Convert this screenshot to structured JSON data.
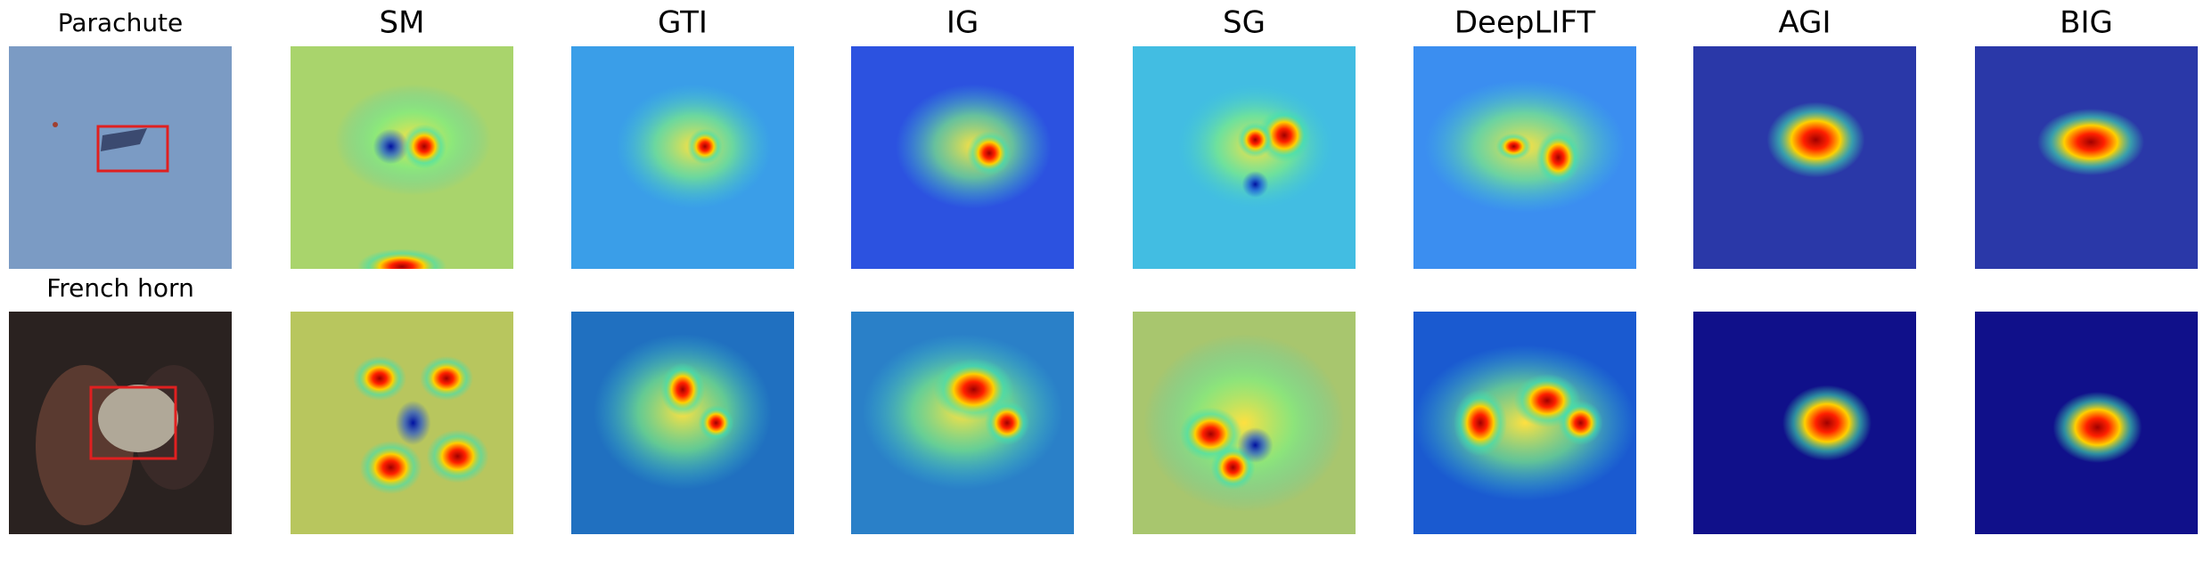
{
  "rows": [
    "Parachute",
    "French horn"
  ],
  "columns": [
    "SM",
    "GTI",
    "IG",
    "SG",
    "DeepLIFT",
    "AGI",
    "BIG"
  ]
}
